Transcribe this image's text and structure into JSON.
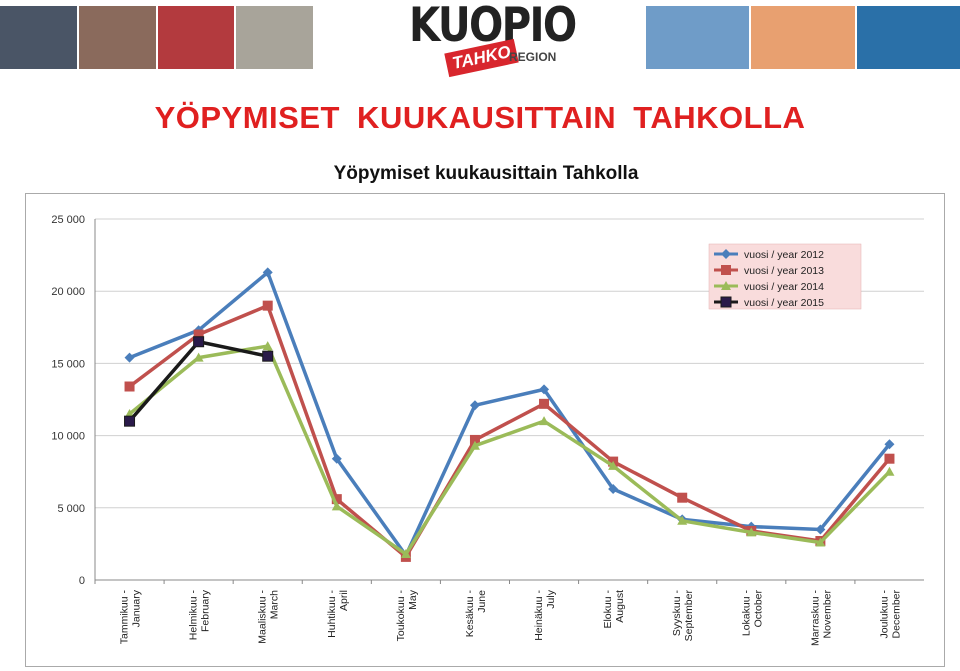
{
  "header": {
    "logo_main": "KUOPIO",
    "logo_sub": "TAHKO",
    "logo_region": "REGION",
    "photos_left": [
      "#4a5566",
      "#8a6a5c",
      "#b33a3e",
      "#a8a49a"
    ],
    "photos_right": [
      "#6f9cc8",
      "#e8a070",
      "#2a70a8"
    ]
  },
  "page_title": "YÖPYMISET  KUUKAUSITTAIN  TAHKOLLA",
  "chart_data": {
    "type": "line",
    "title": "Yöpymiset kuukausittain Tahkolla",
    "xlabel": "",
    "ylabel": "",
    "ylim": [
      0,
      25000
    ],
    "yticks": [
      "0",
      "5 000",
      "10 000",
      "15 000",
      "20 000",
      "25 000"
    ],
    "ytick_values": [
      0,
      5000,
      10000,
      15000,
      20000,
      25000
    ],
    "grid": true,
    "legend_position": "top-right",
    "categories": [
      [
        "Tammikuu -",
        "January"
      ],
      [
        "Helmikuu -",
        "February"
      ],
      [
        "Maaliskuu -",
        "March"
      ],
      [
        "Huhtikuu -",
        "April"
      ],
      [
        "Toukokuu -",
        "May"
      ],
      [
        "Kesäkuu -",
        "June"
      ],
      [
        "Heinäkuu -",
        "July"
      ],
      [
        "Elokuu -",
        "August"
      ],
      [
        "Syyskuu -",
        "September"
      ],
      [
        "Lokakuu -",
        "October"
      ],
      [
        "Marraskuu -",
        "November"
      ],
      [
        "Joulukuu -",
        "December"
      ]
    ],
    "series": [
      {
        "name": "vuosi / year 2012",
        "color": "#4a7ebb",
        "marker": "diamond",
        "values": [
          15400,
          17300,
          21300,
          8400,
          1700,
          12100,
          13200,
          6300,
          4200,
          3700,
          3500,
          9400
        ]
      },
      {
        "name": "vuosi / year 2013",
        "color": "#c0504d",
        "marker": "square",
        "values": [
          13400,
          17000,
          19000,
          5600,
          1600,
          9700,
          12200,
          8200,
          5700,
          3400,
          2700,
          8400
        ]
      },
      {
        "name": "vuosi / year 2014",
        "color": "#9bbb59",
        "marker": "triangle",
        "values": [
          11500,
          15400,
          16200,
          5100,
          1800,
          9300,
          11000,
          7900,
          4100,
          3300,
          2600,
          7500
        ]
      },
      {
        "name": "vuosi / year 2015",
        "color": "#1a1a1a",
        "marker": "square-dark",
        "values": [
          11000,
          16500,
          15500,
          null,
          null,
          null,
          null,
          null,
          null,
          null,
          null,
          null
        ]
      }
    ]
  }
}
